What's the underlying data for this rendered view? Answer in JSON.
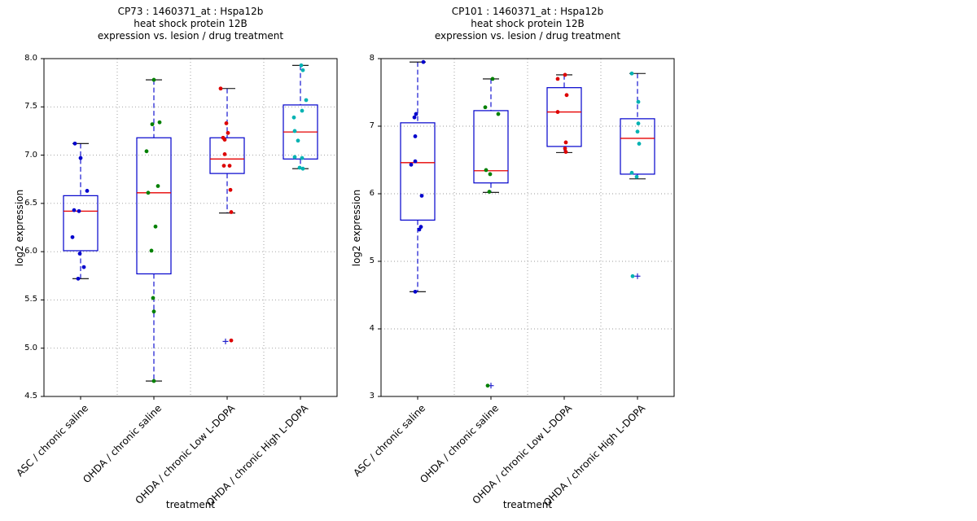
{
  "style": {
    "box_color": "#0000cc",
    "median_color": "#e60000",
    "whisker_color": "#0000cc",
    "cap_color": "#000000",
    "grid_color": "#999999",
    "flier_color": "#2222cc",
    "axis_color": "#000000",
    "background": "#ffffff"
  },
  "chart_data": [
    {
      "type": "box",
      "title_lines": [
        "CP73 : 1460371_at : Hspa12b",
        "heat shock protein 12B",
        "expression vs. lesion / drug treatment"
      ],
      "ylabel": "log2 expression",
      "xlabel": "treatment",
      "ylim": [
        4.5,
        8.0
      ],
      "yticks": [
        4.5,
        5.0,
        5.5,
        6.0,
        6.5,
        7.0,
        7.5,
        8.0
      ],
      "ytick_labels": [
        "4.5",
        "5.0",
        "5.5",
        "6.0",
        "6.5",
        "7.0",
        "7.5",
        "8.0"
      ],
      "grid": true,
      "legend": "none",
      "categories": [
        "ASC / chronic saline",
        "OHDA / chronic saline",
        "OHDA / chronic Low L-DOPA",
        "OHDA / chronic High L-DOPA"
      ],
      "groups": [
        {
          "category": "ASC / chronic saline",
          "point_color": "#0000cd",
          "box": {
            "whisker_low": 5.72,
            "q1": 6.01,
            "median": 6.42,
            "q3": 6.58,
            "whisker_high": 7.12
          },
          "points": [
            [
              -7,
              7.12
            ],
            [
              0,
              6.97
            ],
            [
              8,
              6.63
            ],
            [
              -8,
              6.43
            ],
            [
              -2,
              6.42
            ],
            [
              -10,
              6.15
            ],
            [
              -1,
              5.98
            ],
            [
              4,
              5.84
            ],
            [
              -3,
              5.72
            ]
          ],
          "fliers": []
        },
        {
          "category": "OHDA / chronic saline",
          "point_color": "#008000",
          "box": {
            "whisker_low": 4.66,
            "q1": 5.77,
            "median": 6.61,
            "q3": 7.18,
            "whisker_high": 7.78
          },
          "points": [
            [
              0,
              7.78
            ],
            [
              -2,
              7.32
            ],
            [
              7,
              7.34
            ],
            [
              -9,
              7.04
            ],
            [
              5,
              6.68
            ],
            [
              -7,
              6.61
            ],
            [
              2,
              6.26
            ],
            [
              -3,
              6.01
            ],
            [
              -1,
              5.52
            ],
            [
              0,
              5.38
            ],
            [
              0,
              4.66
            ]
          ],
          "fliers": []
        },
        {
          "category": "OHDA / chronic Low L-DOPA",
          "point_color": "#dd0000",
          "box": {
            "whisker_low": 6.4,
            "q1": 6.81,
            "median": 6.96,
            "q3": 7.18,
            "whisker_high": 7.69
          },
          "points": [
            [
              -8,
              7.69
            ],
            [
              -1,
              7.33
            ],
            [
              1,
              7.23
            ],
            [
              -5,
              7.18
            ],
            [
              -3,
              7.16
            ],
            [
              -3,
              7.01
            ],
            [
              -4,
              6.89
            ],
            [
              3,
              6.89
            ],
            [
              4,
              6.64
            ],
            [
              5,
              6.41
            ],
            [
              5,
              5.08
            ]
          ],
          "fliers": [
            [
              -2,
              5.07
            ]
          ]
        },
        {
          "category": "OHDA / chronic High L-DOPA",
          "point_color": "#00b2b2",
          "box": {
            "whisker_low": 6.86,
            "q1": 6.96,
            "median": 7.24,
            "q3": 7.52,
            "whisker_high": 7.93
          },
          "points": [
            [
              1,
              7.93
            ],
            [
              3,
              7.88
            ],
            [
              7,
              7.57
            ],
            [
              2,
              7.46
            ],
            [
              -8,
              7.39
            ],
            [
              -7,
              7.25
            ],
            [
              -3,
              7.15
            ],
            [
              -7,
              6.98
            ],
            [
              2,
              6.97
            ],
            [
              -1,
              6.87
            ],
            [
              3,
              6.86
            ]
          ],
          "fliers": []
        }
      ]
    },
    {
      "type": "box",
      "title_lines": [
        "CP101 : 1460371_at : Hspa12b",
        "heat shock protein 12B",
        "expression vs. lesion / drug treatment"
      ],
      "ylabel": "log2 expression",
      "xlabel": "treatment",
      "ylim": [
        3,
        8
      ],
      "yticks": [
        3,
        4,
        5,
        6,
        7,
        8
      ],
      "ytick_labels": [
        "3",
        "4",
        "5",
        "6",
        "7",
        "8"
      ],
      "grid": true,
      "legend": "none",
      "categories": [
        "ASC / chronic saline",
        "OHDA / chronic saline",
        "OHDA / chronic Low L-DOPA",
        "OHDA / chronic High L-DOPA"
      ],
      "groups": [
        {
          "category": "ASC / chronic saline",
          "point_color": "#0000cd",
          "box": {
            "whisker_low": 4.55,
            "q1": 5.61,
            "median": 6.46,
            "q3": 7.05,
            "whisker_high": 7.95
          },
          "points": [
            [
              7,
              7.95
            ],
            [
              -2,
              7.18
            ],
            [
              -4,
              7.13
            ],
            [
              -3,
              6.85
            ],
            [
              -3,
              6.48
            ],
            [
              -8,
              6.43
            ],
            [
              5,
              5.97
            ],
            [
              4,
              5.51
            ],
            [
              2,
              5.47
            ],
            [
              -3,
              4.55
            ]
          ],
          "fliers": []
        },
        {
          "category": "OHDA / chronic saline",
          "point_color": "#008000",
          "box": {
            "whisker_low": 6.02,
            "q1": 6.16,
            "median": 6.34,
            "q3": 7.23,
            "whisker_high": 7.7
          },
          "points": [
            [
              2,
              7.7
            ],
            [
              -7,
              7.28
            ],
            [
              9,
              7.18
            ],
            [
              -6,
              6.35
            ],
            [
              -1,
              6.29
            ],
            [
              -2,
              6.03
            ],
            [
              -4,
              3.16
            ]
          ],
          "fliers": [
            [
              0,
              3.16
            ]
          ]
        },
        {
          "category": "OHDA / chronic Low L-DOPA",
          "point_color": "#dd0000",
          "box": {
            "whisker_low": 6.61,
            "q1": 6.7,
            "median": 7.21,
            "q3": 7.57,
            "whisker_high": 7.76
          },
          "points": [
            [
              1,
              7.76
            ],
            [
              -8,
              7.7
            ],
            [
              3,
              7.46
            ],
            [
              -8,
              7.21
            ],
            [
              2,
              6.76
            ],
            [
              1,
              6.67
            ],
            [
              2,
              6.62
            ]
          ],
          "fliers": []
        },
        {
          "category": "OHDA / chronic High L-DOPA",
          "point_color": "#00b2b2",
          "box": {
            "whisker_low": 6.22,
            "q1": 6.29,
            "median": 6.82,
            "q3": 7.11,
            "whisker_high": 7.78
          },
          "points": [
            [
              -7,
              7.78
            ],
            [
              1,
              7.36
            ],
            [
              1,
              7.04
            ],
            [
              0,
              6.92
            ],
            [
              2,
              6.74
            ],
            [
              -7,
              6.31
            ],
            [
              -1,
              6.25
            ],
            [
              -6,
              4.78
            ]
          ],
          "fliers": [
            [
              0,
              4.78
            ]
          ]
        }
      ]
    }
  ]
}
